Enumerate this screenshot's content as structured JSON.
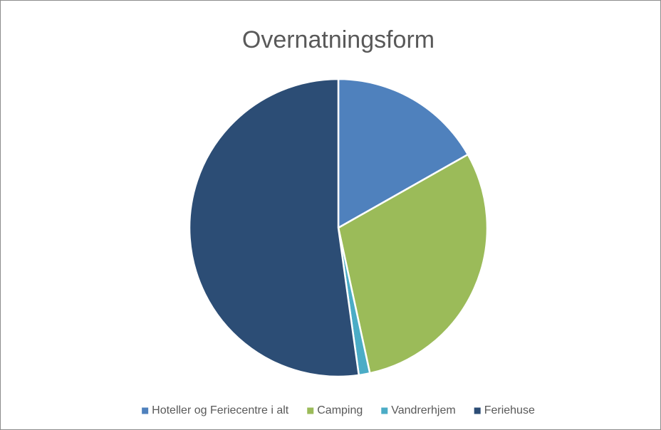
{
  "chart_data": {
    "type": "pie",
    "title": "Overnatningsform",
    "categories": [
      "Hoteller og Feriecentre i alt",
      "Camping",
      "Vandrerhjem",
      "Feriehuse"
    ],
    "values": [
      16.8,
      29.8,
      1.2,
      52.2
    ],
    "colors": [
      "#4f81bd",
      "#9bbb59",
      "#4bacc6",
      "#2c4d75"
    ],
    "legend": "bottom"
  }
}
